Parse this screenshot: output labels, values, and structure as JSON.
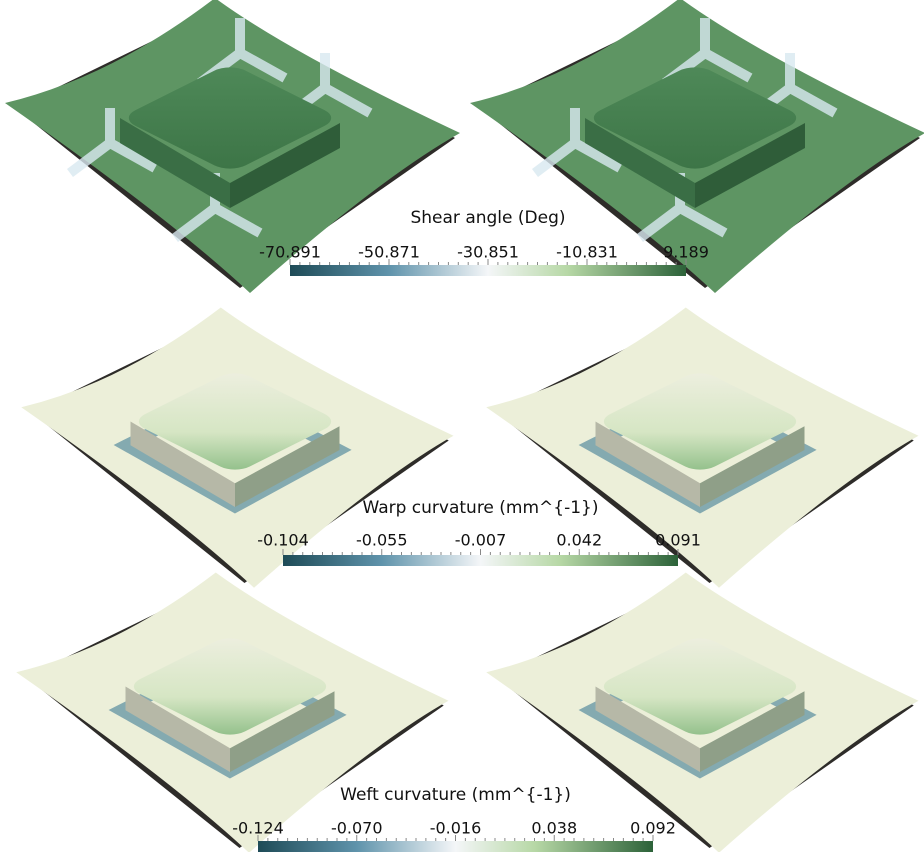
{
  "panels": [
    {
      "title": "Shear angle (Deg)",
      "tick_labels": [
        "-70.891",
        "-50.871",
        "-30.851",
        "-10.831",
        "9.189"
      ]
    },
    {
      "title": "Warp curvature (mm^{-1})",
      "tick_labels": [
        "-0.104",
        "-0.055",
        "-0.007",
        "0.042",
        "0.091"
      ]
    },
    {
      "title": "Weft curvature (mm^{-1})",
      "tick_labels": [
        "-0.124",
        "-0.070",
        "-0.016",
        "0.038",
        "0.092"
      ]
    }
  ]
}
